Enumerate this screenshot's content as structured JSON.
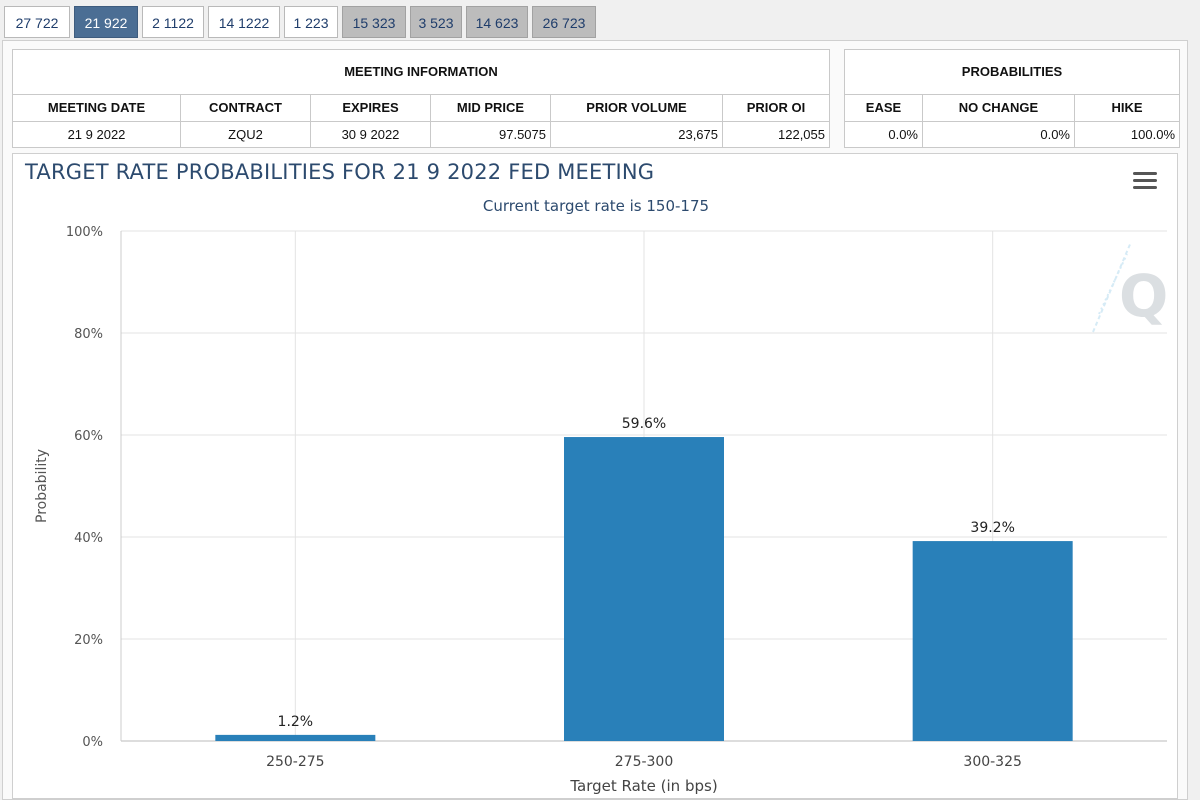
{
  "tabs": [
    {
      "label": "27 722",
      "state": "normal"
    },
    {
      "label": "21 922",
      "state": "active"
    },
    {
      "label": "2 1122",
      "state": "normal"
    },
    {
      "label": "14 1222",
      "state": "normal"
    },
    {
      "label": "1 223",
      "state": "normal"
    },
    {
      "label": "15 323",
      "state": "grey"
    },
    {
      "label": "3 523",
      "state": "grey"
    },
    {
      "label": "14 623",
      "state": "grey"
    },
    {
      "label": "26 723",
      "state": "grey"
    }
  ],
  "meeting_info": {
    "heading": "MEETING INFORMATION",
    "headers": {
      "meeting_date": "MEETING DATE",
      "contract": "CONTRACT",
      "expires": "EXPIRES",
      "mid_price": "MID PRICE",
      "prior_volume": "PRIOR VOLUME",
      "prior_oi": "PRIOR OI"
    },
    "values": {
      "meeting_date": "21 9 2022",
      "contract": "ZQU2",
      "expires": "30 9 2022",
      "mid_price": "97.5075",
      "prior_volume": "23,675",
      "prior_oi": "122,055"
    }
  },
  "probabilities": {
    "heading": "PROBABILITIES",
    "headers": {
      "ease": "EASE",
      "no_change": "NO CHANGE",
      "hike": "HIKE"
    },
    "values": {
      "ease": "0.0%",
      "no_change": "0.0%",
      "hike": "100.0%"
    }
  },
  "colors": {
    "bar": "#2980b9",
    "title": "#2c4a6e",
    "active_tab": "#4b6e94"
  },
  "icons": {
    "menu": "hamburger-menu-icon",
    "logo": "q-watermark-logo"
  },
  "chart_data": {
    "type": "bar",
    "title": "TARGET RATE PROBABILITIES FOR 21 9 2022 FED MEETING",
    "subtitle": "Current target rate is 150-175",
    "xlabel": "Target Rate (in bps)",
    "ylabel": "Probability",
    "categories": [
      "250-275",
      "275-300",
      "300-325"
    ],
    "values": [
      1.2,
      59.6,
      39.2
    ],
    "data_labels": [
      "1.2%",
      "59.6%",
      "39.2%"
    ],
    "ylim": [
      0,
      100
    ],
    "yticks": [
      {
        "value": 0,
        "label": "0%"
      },
      {
        "value": 20,
        "label": "20%"
      },
      {
        "value": 40,
        "label": "40%"
      },
      {
        "value": 60,
        "label": "60%"
      },
      {
        "value": 80,
        "label": "80%"
      },
      {
        "value": 100,
        "label": "100%"
      }
    ],
    "grid": true,
    "legend": "none"
  }
}
